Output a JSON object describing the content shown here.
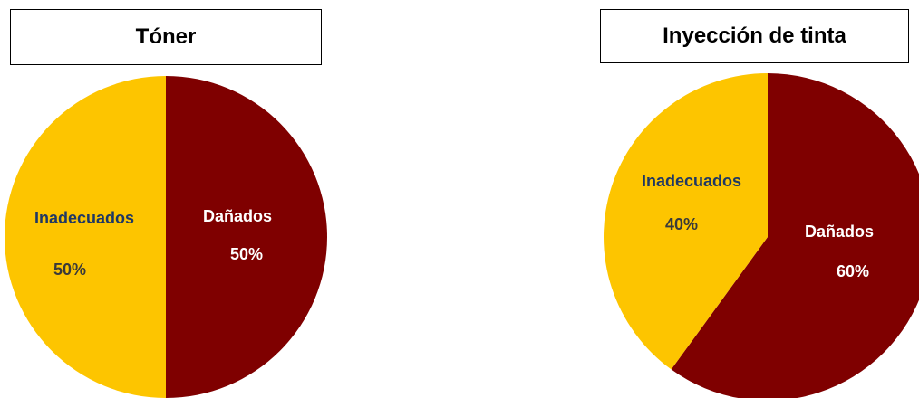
{
  "chart_data": [
    {
      "type": "pie",
      "title": "Tóner",
      "slices": [
        {
          "label": "Dañados",
          "value": 50,
          "value_text": "50%",
          "color": "#7f0000",
          "text_color": "#ffffff"
        },
        {
          "label": "Inadecuados",
          "value": 50,
          "value_text": "50%",
          "color": "#fdc500",
          "text_color": "#1f3864"
        }
      ]
    },
    {
      "type": "pie",
      "title": "Inyección de tinta",
      "slices": [
        {
          "label": "Dañados",
          "value": 60,
          "value_text": "60%",
          "color": "#7f0000",
          "text_color": "#ffffff"
        },
        {
          "label": "Inadecuados",
          "value": 40,
          "value_text": "40%",
          "color": "#fdc500",
          "text_color": "#1f3864"
        }
      ]
    }
  ]
}
